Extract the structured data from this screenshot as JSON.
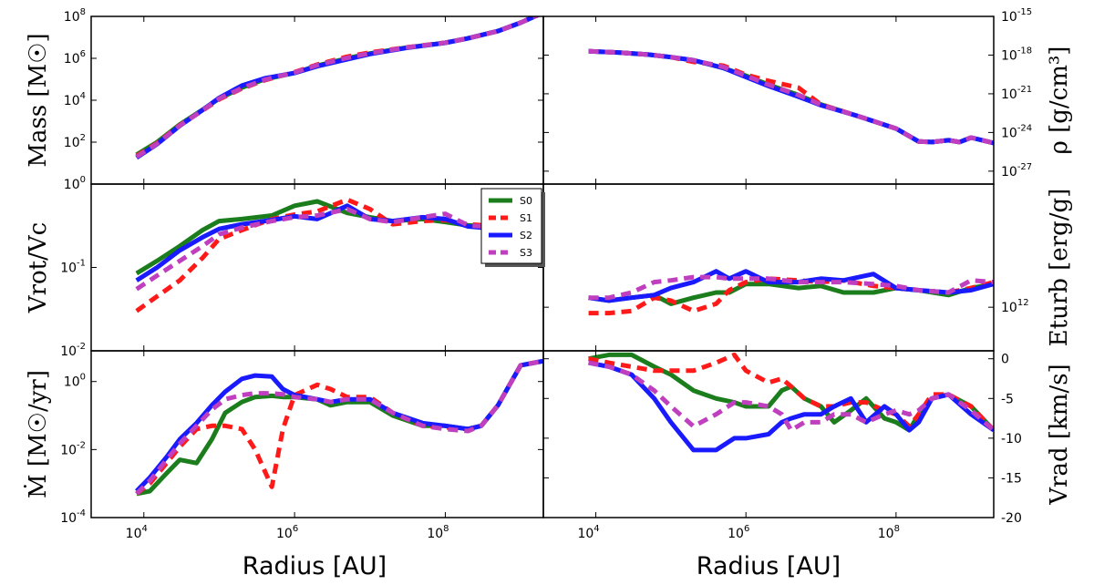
{
  "colors": {
    "S0": "#1b7d1b",
    "S1": "#ff1a1a",
    "S2": "#1a1aff",
    "S3": "#bf3fbf"
  },
  "xlabel": "Radius [AU]",
  "x_ticks": [
    {
      "value": 10000,
      "base": "10",
      "exp": "4"
    },
    {
      "value": 1000000,
      "base": "10",
      "exp": "6"
    },
    {
      "value": 100000000,
      "base": "10",
      "exp": "8"
    }
  ],
  "legend": [
    "S0",
    "S1",
    "S2",
    "S3"
  ],
  "chart_data": [
    {
      "type": "line",
      "panel": "top-left",
      "xscale": "log",
      "yscale": "log",
      "xlim": [
        2000,
        2000000000
      ],
      "ylim": [
        1,
        100000000
      ],
      "ylabel": "Mass [M☉]",
      "yticks": [
        {
          "value": 1,
          "base": "10",
          "exp": "0"
        },
        {
          "value": 100,
          "base": "10",
          "exp": "2"
        },
        {
          "value": 10000,
          "base": "10",
          "exp": "4"
        },
        {
          "value": 1000000,
          "base": "10",
          "exp": "6"
        },
        {
          "value": 100000000,
          "base": "10",
          "exp": "8"
        }
      ],
      "x": [
        8000,
        15000,
        30000,
        60000,
        100000,
        200000,
        400000,
        1000000,
        2000000,
        5000000,
        10000000,
        30000000,
        100000000,
        200000000,
        500000000,
        1000000000,
        2000000000
      ],
      "series": [
        {
          "name": "S0",
          "values": [
            25,
            100,
            700,
            3500,
            12000,
            40000,
            100000,
            200000,
            450000,
            1000000,
            1700000,
            3200000,
            5500000,
            9000000,
            20000000,
            50000000,
            150000000
          ]
        },
        {
          "name": "S1",
          "values": [
            22,
            90,
            650,
            3200,
            11000,
            36000,
            90000,
            220000,
            500000,
            1200000,
            1900000,
            3300000,
            5600000,
            9000000,
            20000000,
            50000000,
            150000000
          ]
        },
        {
          "name": "S2",
          "values": [
            18,
            80,
            600,
            3400,
            13000,
            50000,
            110000,
            200000,
            420000,
            900000,
            1600000,
            3100000,
            5500000,
            9000000,
            20000000,
            50000000,
            150000000
          ]
        },
        {
          "name": "S3",
          "values": [
            20,
            85,
            620,
            3300,
            12000,
            38000,
            95000,
            210000,
            470000,
            1050000,
            1750000,
            3250000,
            5550000,
            9000000,
            20000000,
            50000000,
            150000000
          ]
        }
      ]
    },
    {
      "type": "line",
      "panel": "top-right",
      "xscale": "log",
      "yscale": "log",
      "xlim": [
        2000,
        2000000000
      ],
      "ylim": [
        1e-28,
        1e-15
      ],
      "ylabel": "ρ [g/cm³]",
      "yticks": [
        {
          "value": 1e-15,
          "base": "10",
          "exp": "-15"
        },
        {
          "value": 1e-18,
          "base": "10",
          "exp": "-18"
        },
        {
          "value": 1e-21,
          "base": "10",
          "exp": "-21"
        },
        {
          "value": 1e-24,
          "base": "10",
          "exp": "-24"
        },
        {
          "value": 1e-27,
          "base": "10",
          "exp": "-27"
        }
      ],
      "x": [
        8000,
        20000,
        50000,
        100000,
        200000,
        500000,
        1000000,
        2000000,
        5000000,
        10000000,
        30000000,
        100000000,
        200000000,
        300000000,
        500000000,
        700000000,
        1000000000,
        2000000000
      ],
      "series": [
        {
          "name": "S0",
          "values": [
            2e-18,
            1.6e-18,
            1.1e-18,
            7e-19,
            4e-19,
            1e-19,
            2.5e-20,
            5e-21,
            8e-22,
            1.5e-22,
            2e-23,
            2e-24,
            2e-25,
            1.8e-25,
            2.5e-25,
            1.8e-25,
            4e-25,
            1.5e-25
          ]
        },
        {
          "name": "S1",
          "values": [
            2e-18,
            1.6e-18,
            1.1e-18,
            7e-19,
            3e-19,
            1.5e-19,
            3e-20,
            1e-20,
            3e-21,
            1.5e-22,
            2e-23,
            2e-24,
            2e-25,
            1.8e-25,
            2.5e-25,
            1.8e-25,
            4e-25,
            1.5e-25
          ]
        },
        {
          "name": "S2",
          "values": [
            2e-18,
            1.6e-18,
            1.1e-18,
            7e-19,
            4e-19,
            1e-19,
            2e-20,
            4e-21,
            6e-22,
            1.3e-22,
            2e-23,
            2e-24,
            2e-25,
            1.8e-25,
            2.5e-25,
            1.8e-25,
            4e-25,
            1.5e-25
          ]
        },
        {
          "name": "S3",
          "values": [
            2e-18,
            1.6e-18,
            1.1e-18,
            7e-19,
            4e-19,
            1.2e-19,
            2.5e-20,
            5e-21,
            8e-22,
            1.4e-22,
            2e-23,
            2e-24,
            2e-25,
            1.8e-25,
            2.5e-25,
            1.8e-25,
            4e-25,
            1.5e-25
          ]
        }
      ]
    },
    {
      "type": "line",
      "panel": "middle-left",
      "xscale": "log",
      "yscale": "log",
      "xlim": [
        2000,
        2000000000
      ],
      "ylim": [
        0.01,
        1
      ],
      "ylabel": "Vrot/Vc",
      "yticks": [
        {
          "value": 0.01,
          "base": "10",
          "exp": "-2"
        },
        {
          "value": 0.1,
          "base": "10",
          "exp": "-1"
        }
      ],
      "x": [
        8000,
        15000,
        30000,
        60000,
        100000,
        200000,
        500000,
        1000000,
        2000000,
        5000000,
        10000000,
        20000000,
        50000000,
        100000000,
        200000000,
        500000000
      ],
      "series": [
        {
          "name": "S0",
          "values": [
            0.085,
            0.12,
            0.18,
            0.28,
            0.36,
            0.38,
            0.42,
            0.55,
            0.62,
            0.45,
            0.4,
            0.36,
            0.38,
            0.35,
            0.32,
            0.3
          ]
        },
        {
          "name": "S1",
          "values": [
            0.03,
            0.045,
            0.07,
            0.13,
            0.22,
            0.28,
            0.38,
            0.43,
            0.47,
            0.65,
            0.5,
            0.33,
            0.36,
            0.37,
            0.33,
            0.31
          ]
        },
        {
          "name": "S2",
          "values": [
            0.07,
            0.1,
            0.16,
            0.23,
            0.29,
            0.33,
            0.37,
            0.41,
            0.38,
            0.55,
            0.38,
            0.36,
            0.4,
            0.38,
            0.31,
            0.29
          ]
        },
        {
          "name": "S3",
          "values": [
            0.055,
            0.08,
            0.12,
            0.18,
            0.25,
            0.3,
            0.36,
            0.4,
            0.42,
            0.5,
            0.38,
            0.35,
            0.4,
            0.44,
            0.32,
            0.3
          ]
        }
      ]
    },
    {
      "type": "line",
      "panel": "middle-right",
      "xscale": "log",
      "yscale": "log",
      "xlim": [
        2000,
        2000000000
      ],
      "ylim": [
        300000000000,
        30000000000000
      ],
      "ylabel": "Eturb [erg/g]",
      "yticks": [
        {
          "value": 1000000000000,
          "base": "10",
          "exp": "12"
        }
      ],
      "x": [
        8000,
        15000,
        30000,
        60000,
        100000,
        200000,
        400000,
        600000,
        1000000,
        2000000,
        5000000,
        10000000,
        20000000,
        50000000,
        100000000,
        200000000,
        500000000,
        1000000000,
        2000000000
      ],
      "series": [
        {
          "name": "S0",
          "values": [
            1300000000000.0,
            1200000000000.0,
            1300000000000.0,
            1400000000000.0,
            1100000000000.0,
            1300000000000.0,
            1500000000000.0,
            1500000000000.0,
            1900000000000.0,
            1900000000000.0,
            1700000000000.0,
            1800000000000.0,
            1500000000000.0,
            1500000000000.0,
            1700000000000.0,
            1600000000000.0,
            1400000000000.0,
            1700000000000.0,
            1900000000000.0
          ]
        },
        {
          "name": "S1",
          "values": [
            850000000000.0,
            850000000000.0,
            900000000000.0,
            1300000000000.0,
            1200000000000.0,
            900000000000.0,
            1100000000000.0,
            1600000000000.0,
            2000000000000.0,
            2200000000000.0,
            2100000000000.0,
            2000000000000.0,
            2100000000000.0,
            1800000000000.0,
            1700000000000.0,
            1600000000000.0,
            1500000000000.0,
            1700000000000.0,
            2000000000000.0
          ]
        },
        {
          "name": "S2",
          "values": [
            1300000000000.0,
            1200000000000.0,
            1300000000000.0,
            1400000000000.0,
            1700000000000.0,
            2000000000000.0,
            2700000000000.0,
            2200000000000.0,
            2700000000000.0,
            2000000000000.0,
            2000000000000.0,
            2200000000000.0,
            2100000000000.0,
            2500000000000.0,
            1700000000000.0,
            1600000000000.0,
            1500000000000.0,
            1600000000000.0,
            1900000000000.0
          ]
        },
        {
          "name": "S3",
          "values": [
            1300000000000.0,
            1300000000000.0,
            1500000000000.0,
            2000000000000.0,
            2100000000000.0,
            2300000000000.0,
            2300000000000.0,
            2200000000000.0,
            2200000000000.0,
            2200000000000.0,
            2000000000000.0,
            2000000000000.0,
            2000000000000.0,
            1900000000000.0,
            1800000000000.0,
            1600000000000.0,
            1500000000000.0,
            2100000000000.0,
            2000000000000.0
          ]
        }
      ]
    },
    {
      "type": "line",
      "panel": "bottom-left",
      "xscale": "log",
      "yscale": "log",
      "xlim": [
        2000,
        2000000000
      ],
      "ylim": [
        0.0001,
        8
      ],
      "ylabel": "Ṁ [M☉/yr]",
      "yticks": [
        {
          "value": 0.0001,
          "base": "10",
          "exp": "-4"
        },
        {
          "value": 0.01,
          "base": "10",
          "exp": "-2"
        },
        {
          "value": 1,
          "base": "10",
          "exp": "0"
        }
      ],
      "x": [
        8000,
        12000,
        20000,
        30000,
        50000,
        80000,
        120000,
        200000,
        300000,
        500000,
        700000,
        1000000,
        2000000,
        3000000,
        5000000,
        10000000,
        20000000,
        50000000,
        100000000,
        200000000,
        300000000,
        500000000,
        1000000000,
        2000000000
      ],
      "series": [
        {
          "name": "S0",
          "values": [
            0.0005,
            0.0006,
            0.002,
            0.005,
            0.004,
            0.02,
            0.12,
            0.25,
            0.35,
            0.38,
            0.35,
            0.35,
            0.3,
            0.2,
            0.25,
            0.25,
            0.1,
            0.05,
            0.05,
            0.04,
            0.05,
            0.2,
            3,
            4
          ]
        },
        {
          "name": "S1",
          "values": [
            0.0005,
            0.001,
            0.004,
            0.012,
            0.04,
            0.05,
            0.05,
            0.04,
            0.01,
            0.0008,
            0.04,
            0.4,
            0.8,
            0.6,
            0.35,
            0.35,
            0.12,
            0.05,
            0.045,
            0.04,
            0.05,
            0.2,
            3,
            4
          ]
        },
        {
          "name": "S2",
          "values": [
            0.0006,
            0.0015,
            0.006,
            0.02,
            0.06,
            0.2,
            0.5,
            1.2,
            1.5,
            1.4,
            0.6,
            0.4,
            0.3,
            0.25,
            0.3,
            0.3,
            0.12,
            0.06,
            0.05,
            0.04,
            0.05,
            0.2,
            3,
            4
          ]
        },
        {
          "name": "S3",
          "values": [
            0.0005,
            0.0012,
            0.005,
            0.015,
            0.05,
            0.15,
            0.3,
            0.4,
            0.45,
            0.45,
            0.42,
            0.35,
            0.3,
            0.25,
            0.3,
            0.3,
            0.12,
            0.05,
            0.04,
            0.035,
            0.05,
            0.2,
            3,
            4
          ]
        }
      ]
    },
    {
      "type": "line",
      "panel": "bottom-right",
      "xscale": "log",
      "yscale": "linear",
      "xlim": [
        2000,
        2000000000
      ],
      "ylim": [
        -20,
        1
      ],
      "ylabel": "Vrad [km/s]",
      "yticks": [
        {
          "value": 0,
          "label": "0"
        },
        {
          "value": -5,
          "label": "-5"
        },
        {
          "value": -10,
          "label": "-10"
        },
        {
          "value": -15,
          "label": "-15"
        },
        {
          "value": -20,
          "label": "-20"
        }
      ],
      "x": [
        8000,
        15000,
        30000,
        60000,
        100000,
        200000,
        400000,
        700000,
        1000000,
        2000000,
        3000000,
        4000000,
        6000000,
        10000000,
        15000000,
        25000000,
        40000000,
        70000000,
        100000000,
        150000000,
        200000000,
        300000000,
        500000000,
        1000000000,
        2000000000
      ],
      "series": [
        {
          "name": "S0",
          "values": [
            0,
            0.5,
            0.5,
            -1,
            -2,
            -4,
            -5,
            -5.5,
            -6,
            -6,
            -4,
            -3.5,
            -5,
            -6,
            -8,
            -6.5,
            -5,
            -7.5,
            -8,
            -9,
            -7,
            -5,
            -4.5,
            -6,
            -9
          ]
        },
        {
          "name": "S1",
          "values": [
            0,
            -0.5,
            -1,
            -1.5,
            -1.5,
            -1.5,
            -0.5,
            0.5,
            -1.5,
            -3,
            -2.5,
            -3.5,
            -5,
            -6,
            -6,
            -5.5,
            -5.5,
            -6.5,
            -7,
            -8.5,
            -7,
            -4.5,
            -4.5,
            -6,
            -9
          ]
        },
        {
          "name": "S2",
          "values": [
            -0.5,
            -1,
            -2,
            -5,
            -8,
            -11.5,
            -11.5,
            -10,
            -10,
            -9.5,
            -8,
            -7.5,
            -7,
            -7,
            -6,
            -5,
            -8,
            -6,
            -7,
            -9,
            -8,
            -5,
            -4.5,
            -7,
            -9
          ]
        },
        {
          "name": "S3",
          "values": [
            -0.5,
            -1,
            -2,
            -4,
            -6,
            -8.5,
            -7,
            -5.5,
            -5.5,
            -6,
            -7,
            -9,
            -8,
            -8,
            -7,
            -7,
            -8,
            -7,
            -6.5,
            -7,
            -6.5,
            -5,
            -4.5,
            -6.5,
            -9
          ]
        }
      ]
    }
  ]
}
